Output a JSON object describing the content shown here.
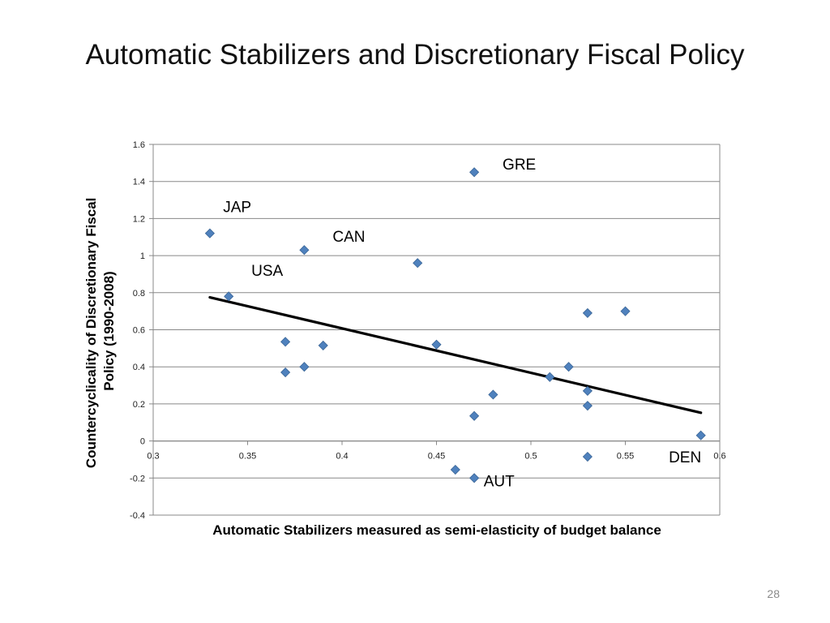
{
  "slide": {
    "title": "Automatic Stabilizers and Discretionary Fiscal Policy",
    "number": "28"
  },
  "chart_data": {
    "type": "scatter",
    "title": "",
    "xlabel": "Automatic Stabilizers measured as semi-elasticity of budget balance",
    "ylabel_lines": [
      "Countercyclicality of Discretionary Fiscal",
      "Policy (1990-2008)"
    ],
    "xlim": [
      0.3,
      0.6
    ],
    "ylim": [
      -0.4,
      1.6
    ],
    "x_ticks": [
      "0.3",
      "0.35",
      "0.4",
      "0.45",
      "0.5",
      "0.55",
      "0.6"
    ],
    "y_ticks": [
      "1.6",
      "1.4",
      "1.2",
      "1",
      "0.8",
      "0.6",
      "0.4",
      "0.2",
      "0",
      "-0.2",
      "-0.4"
    ],
    "grid": "horizontal",
    "marker_color": "#4F81BD",
    "points": [
      {
        "x": 0.33,
        "y": 1.12
      },
      {
        "x": 0.34,
        "y": 0.78
      },
      {
        "x": 0.37,
        "y": 0.535
      },
      {
        "x": 0.37,
        "y": 0.37
      },
      {
        "x": 0.38,
        "y": 1.03
      },
      {
        "x": 0.38,
        "y": 0.4
      },
      {
        "x": 0.39,
        "y": 0.515
      },
      {
        "x": 0.44,
        "y": 0.96
      },
      {
        "x": 0.45,
        "y": 0.52
      },
      {
        "x": 0.46,
        "y": -0.155
      },
      {
        "x": 0.47,
        "y": 1.45
      },
      {
        "x": 0.47,
        "y": 0.135
      },
      {
        "x": 0.47,
        "y": -0.2
      },
      {
        "x": 0.48,
        "y": 0.25
      },
      {
        "x": 0.51,
        "y": 0.345
      },
      {
        "x": 0.52,
        "y": 0.4
      },
      {
        "x": 0.53,
        "y": 0.69
      },
      {
        "x": 0.53,
        "y": 0.27
      },
      {
        "x": 0.53,
        "y": 0.19
      },
      {
        "x": 0.53,
        "y": -0.085
      },
      {
        "x": 0.55,
        "y": 0.7
      },
      {
        "x": 0.59,
        "y": 0.03
      }
    ],
    "trendline": {
      "x": [
        0.33,
        0.59
      ],
      "y": [
        0.775,
        0.152
      ]
    },
    "annotations": [
      {
        "text": "GRE",
        "x": 0.485,
        "y": 1.465
      },
      {
        "text": "JAP",
        "x": 0.337,
        "y": 1.235
      },
      {
        "text": "CAN",
        "x": 0.395,
        "y": 1.075
      },
      {
        "text": "USA",
        "x": 0.352,
        "y": 0.89
      },
      {
        "text": "DEN",
        "x": 0.573,
        "y": -0.115
      },
      {
        "text": "AUT",
        "x": 0.475,
        "y": -0.245
      }
    ]
  }
}
